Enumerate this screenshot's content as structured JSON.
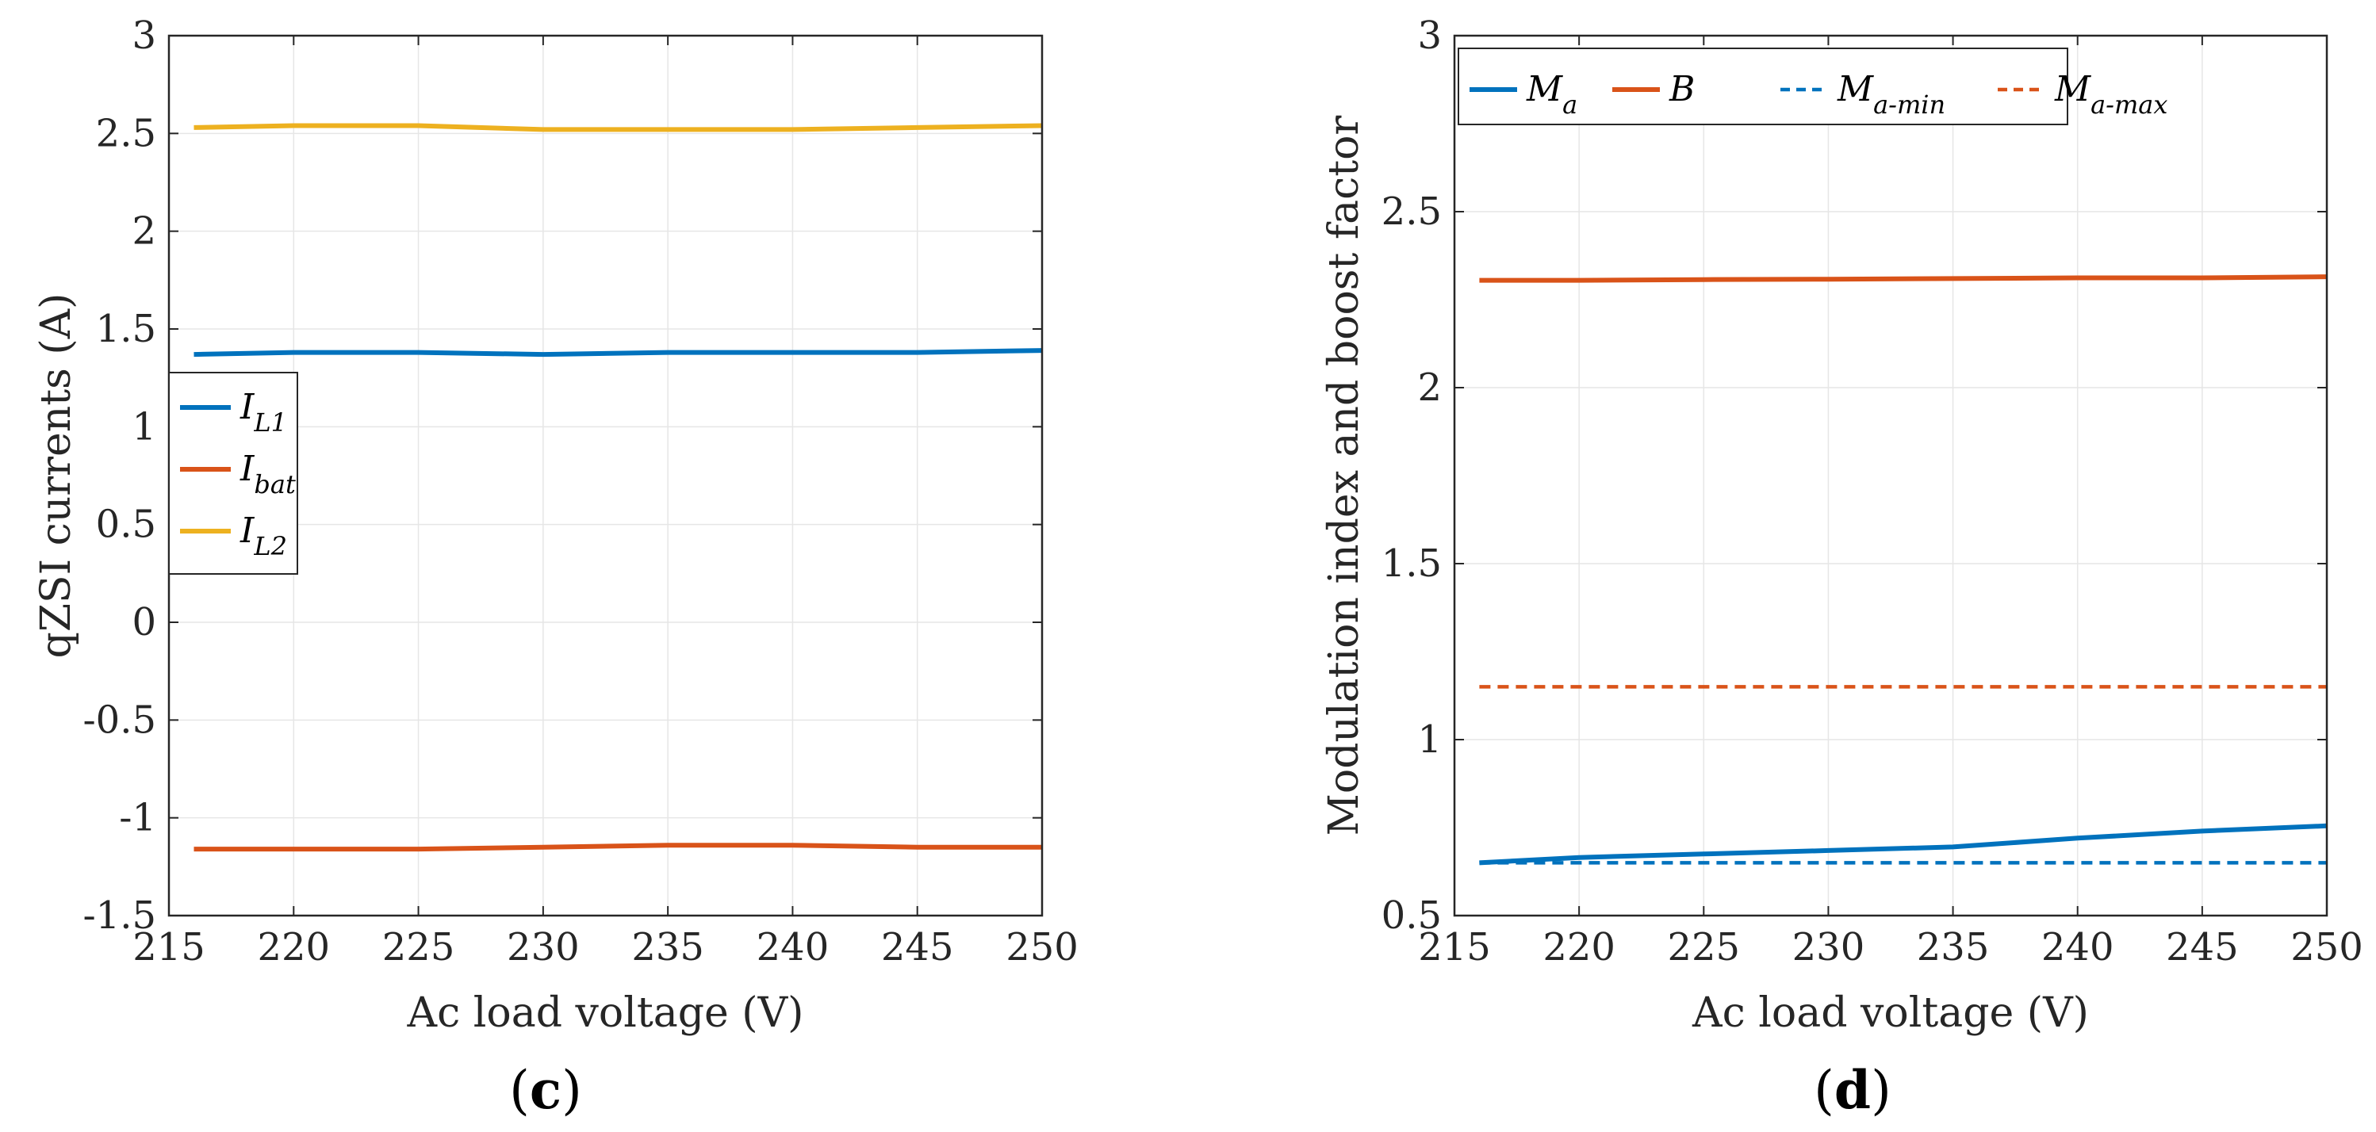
{
  "chart_data": [
    {
      "type": "line",
      "panel_label": "c",
      "title": "",
      "xlabel": "Ac load voltage (V)",
      "ylabel": "qZSI currents (A)",
      "xlim": [
        215,
        250
      ],
      "ylim": [
        -1.5,
        3
      ],
      "xticks": [
        "215",
        "220",
        "225",
        "230",
        "235",
        "240",
        "245",
        "250"
      ],
      "yticks": [
        "-1.5",
        "-1",
        "-0.5",
        "0",
        "0.5",
        "1",
        "1.5",
        "2",
        "2.5",
        "3"
      ],
      "grid": true,
      "legend_position": "center-left",
      "series": [
        {
          "name": "I",
          "sub": "L1",
          "color": "#0072BD",
          "dashed": false,
          "x": [
            216,
            220,
            225,
            230,
            235,
            240,
            245,
            250
          ],
          "y": [
            1.37,
            1.38,
            1.38,
            1.37,
            1.38,
            1.38,
            1.38,
            1.39
          ]
        },
        {
          "name": "I",
          "sub": "bat",
          "color": "#D95319",
          "dashed": false,
          "x": [
            216,
            220,
            225,
            230,
            235,
            240,
            245,
            250
          ],
          "y": [
            -1.16,
            -1.16,
            -1.16,
            -1.15,
            -1.14,
            -1.14,
            -1.15,
            -1.15
          ]
        },
        {
          "name": "I",
          "sub": "L2",
          "color": "#EDB120",
          "dashed": false,
          "x": [
            216,
            220,
            225,
            230,
            235,
            240,
            245,
            250
          ],
          "y": [
            2.53,
            2.54,
            2.54,
            2.52,
            2.52,
            2.52,
            2.53,
            2.54
          ]
        }
      ]
    },
    {
      "type": "line",
      "panel_label": "d",
      "title": "",
      "xlabel": "Ac load voltage (V)",
      "ylabel": "Modulation index and boost factor",
      "xlim": [
        215,
        250
      ],
      "ylim": [
        0.5,
        3
      ],
      "xticks": [
        "215",
        "220",
        "225",
        "230",
        "235",
        "240",
        "245",
        "250"
      ],
      "yticks": [
        "0.5",
        "1",
        "1.5",
        "2",
        "2.5",
        "3"
      ],
      "grid": true,
      "legend_position": "top-left",
      "series": [
        {
          "name": "M",
          "sub": "a",
          "color": "#0072BD",
          "dashed": false,
          "x": [
            216,
            220,
            225,
            230,
            235,
            240,
            245,
            250
          ],
          "y": [
            0.65,
            0.665,
            0.675,
            0.685,
            0.695,
            0.72,
            0.74,
            0.755
          ]
        },
        {
          "name": "B",
          "sub": "",
          "color": "#D95319",
          "dashed": false,
          "x": [
            216,
            220,
            225,
            230,
            235,
            240,
            245,
            250
          ],
          "y": [
            2.305,
            2.305,
            2.307,
            2.308,
            2.31,
            2.312,
            2.312,
            2.315
          ]
        },
        {
          "name": "M",
          "sub": "a-min",
          "color": "#0072BD",
          "dashed": true,
          "x": [
            216,
            250
          ],
          "y": [
            0.65,
            0.65
          ]
        },
        {
          "name": "M",
          "sub": "a-max",
          "color": "#D95319",
          "dashed": true,
          "x": [
            216,
            250
          ],
          "y": [
            1.15,
            1.15
          ]
        }
      ]
    }
  ]
}
